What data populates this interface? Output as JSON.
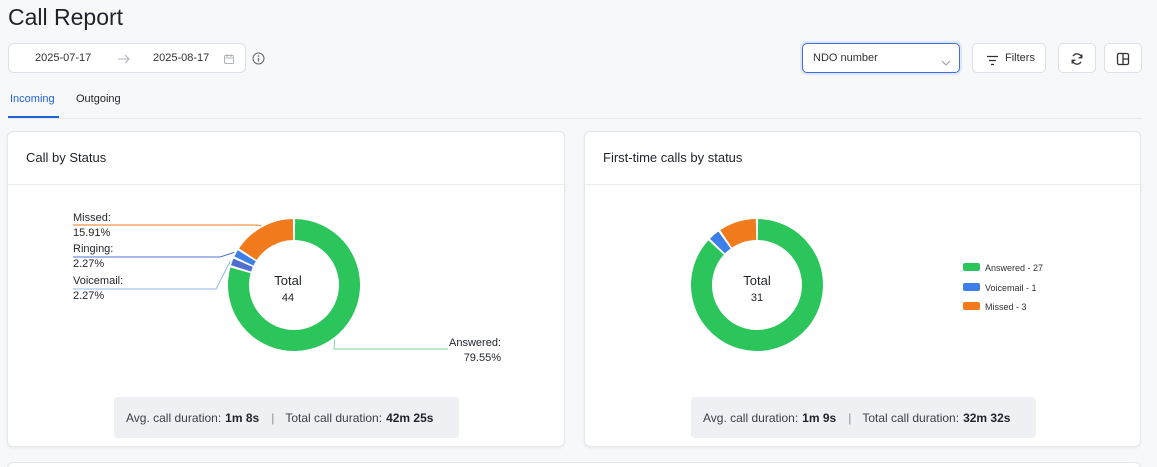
{
  "page": {
    "title": "Call Report"
  },
  "date_range": {
    "start": "2025-07-17",
    "end": "2025-08-17"
  },
  "ndo_select": {
    "value": "NDO number"
  },
  "toolbar": {
    "filters_label": "Filters"
  },
  "tabs": [
    {
      "label": "Incoming",
      "active": true
    },
    {
      "label": "Outgoing",
      "active": false
    }
  ],
  "colors": {
    "answered": "#2cc55c",
    "voicemail": "#3d7ee8",
    "missed": "#f07a1c",
    "accent": "#1f63d8"
  },
  "chart_data": [
    {
      "type": "pie",
      "title": "Call by Status",
      "center_label": "Total",
      "total": "44",
      "slices": [
        {
          "name": "Answered",
          "percent": 79.55,
          "label": "Answered:",
          "value_text": "79.55%",
          "color": "#2cc55c"
        },
        {
          "name": "Voicemail",
          "percent": 2.27,
          "label": "Voicemail:",
          "value_text": "2.27%",
          "color": "#4f6fd0"
        },
        {
          "name": "Ringing",
          "percent": 2.27,
          "label": "Ringing:",
          "value_text": "2.27%",
          "color": "#3d7ee8"
        },
        {
          "name": "Missed",
          "percent": 15.91,
          "label": "Missed:",
          "value_text": "15.91%",
          "color": "#f07a1c"
        }
      ],
      "summary": {
        "avg_label": "Avg. call duration:",
        "avg_value": "1m 8s",
        "total_label": "Total call duration:",
        "total_value": "42m 25s"
      }
    },
    {
      "type": "pie",
      "title": "First-time calls by status",
      "center_label": "Total",
      "total": "31",
      "slices": [
        {
          "name": "Answered",
          "value": 27,
          "legend": "Answered - 27",
          "color": "#2cc55c"
        },
        {
          "name": "Voicemail",
          "value": 1,
          "legend": "Voicemail - 1",
          "color": "#3d7ee8"
        },
        {
          "name": "Missed",
          "value": 3,
          "legend": "Missed - 3",
          "color": "#f07a1c"
        }
      ],
      "legend_position": "right",
      "summary": {
        "avg_label": "Avg. call duration:",
        "avg_value": "1m 9s",
        "total_label": "Total call duration:",
        "total_value": "32m 32s"
      }
    }
  ]
}
